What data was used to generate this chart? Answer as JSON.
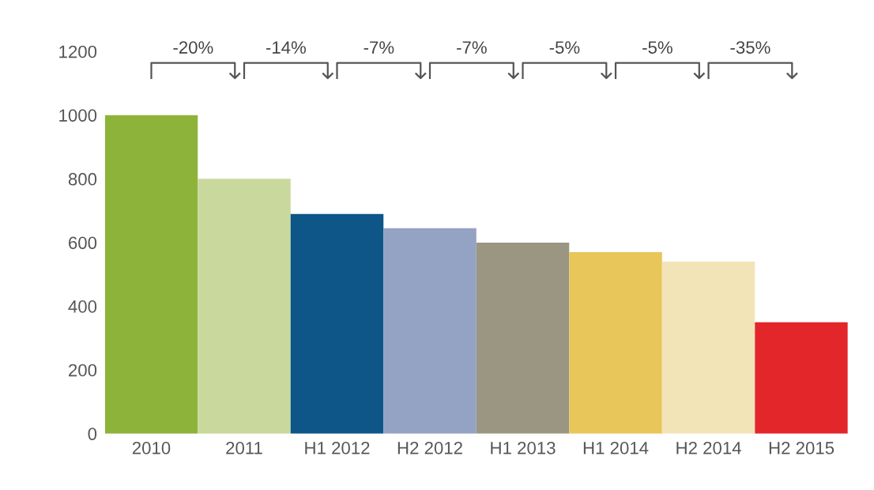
{
  "chart_data": {
    "type": "bar",
    "categories": [
      "2010",
      "2011",
      "H1 2012",
      "H2 2012",
      "H1 2013",
      "H1 2014",
      "H2 2014",
      "H2 2015"
    ],
    "values": [
      1000,
      800,
      690,
      645,
      600,
      570,
      540,
      350
    ],
    "colors": [
      "#8db33a",
      "#c9d89c",
      "#0e5688",
      "#94a2c3",
      "#9b9682",
      "#e9c65a",
      "#f3e4b8",
      "#e3262a"
    ],
    "ylim": [
      0,
      1200
    ],
    "yticks": [
      0,
      200,
      400,
      600,
      800,
      1000,
      1200
    ],
    "grid": false,
    "annotations": [
      "-20%",
      "-14%",
      "-7%",
      "-7%",
      "-5%",
      "-5%",
      "-35%"
    ]
  }
}
